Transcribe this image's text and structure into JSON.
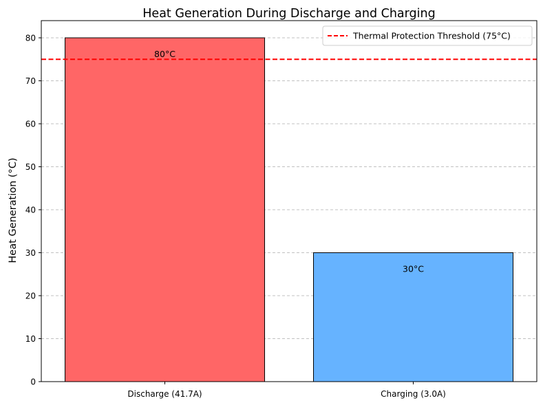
{
  "chart_data": {
    "type": "bar",
    "title": "Heat Generation During Discharge and Charging",
    "xlabel": "",
    "ylabel": "Heat Generation (°C)",
    "ylim": [
      0,
      84
    ],
    "yticks": [
      0,
      10,
      20,
      30,
      40,
      50,
      60,
      70,
      80
    ],
    "categories": [
      "Discharge (41.7A)",
      "Charging (3.0A)"
    ],
    "values": [
      80,
      30
    ],
    "data_labels": [
      "80°C",
      "30°C"
    ],
    "bar_colors": [
      "#ff6666",
      "#66b3ff"
    ],
    "bar_edge_color": "#000000",
    "threshold": {
      "value": 75,
      "label": "Thermal Protection Threshold (75°C)",
      "color": "#ff0000",
      "style": "dashed"
    },
    "grid": {
      "axis": "y",
      "style": "dashed",
      "color": "#c0c0c0"
    },
    "legend_position": "top-right"
  }
}
